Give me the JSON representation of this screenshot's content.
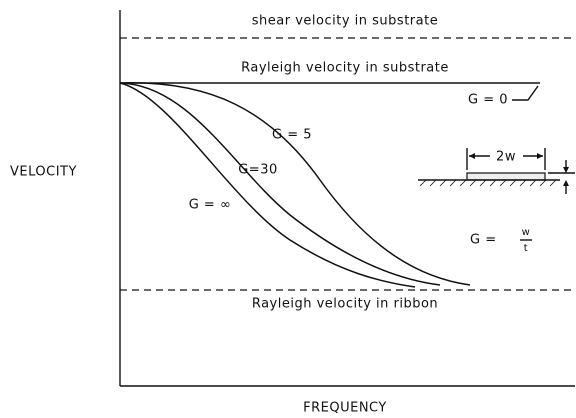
{
  "lines": {
    "shear": "shear velocity in substrate",
    "rayleigh_substrate": "Rayleigh velocity in substrate",
    "rayleigh_ribbon": "Rayleigh velocity in ribbon"
  },
  "axes": {
    "y": "VELOCITY",
    "x": "FREQUENCY"
  },
  "curves": [
    "G = 0",
    "G = 5",
    "G=30",
    "G = ∞"
  ],
  "inset": {
    "width": "2w",
    "ratio": "G =",
    "numerator": "w",
    "denominator": "t"
  }
}
